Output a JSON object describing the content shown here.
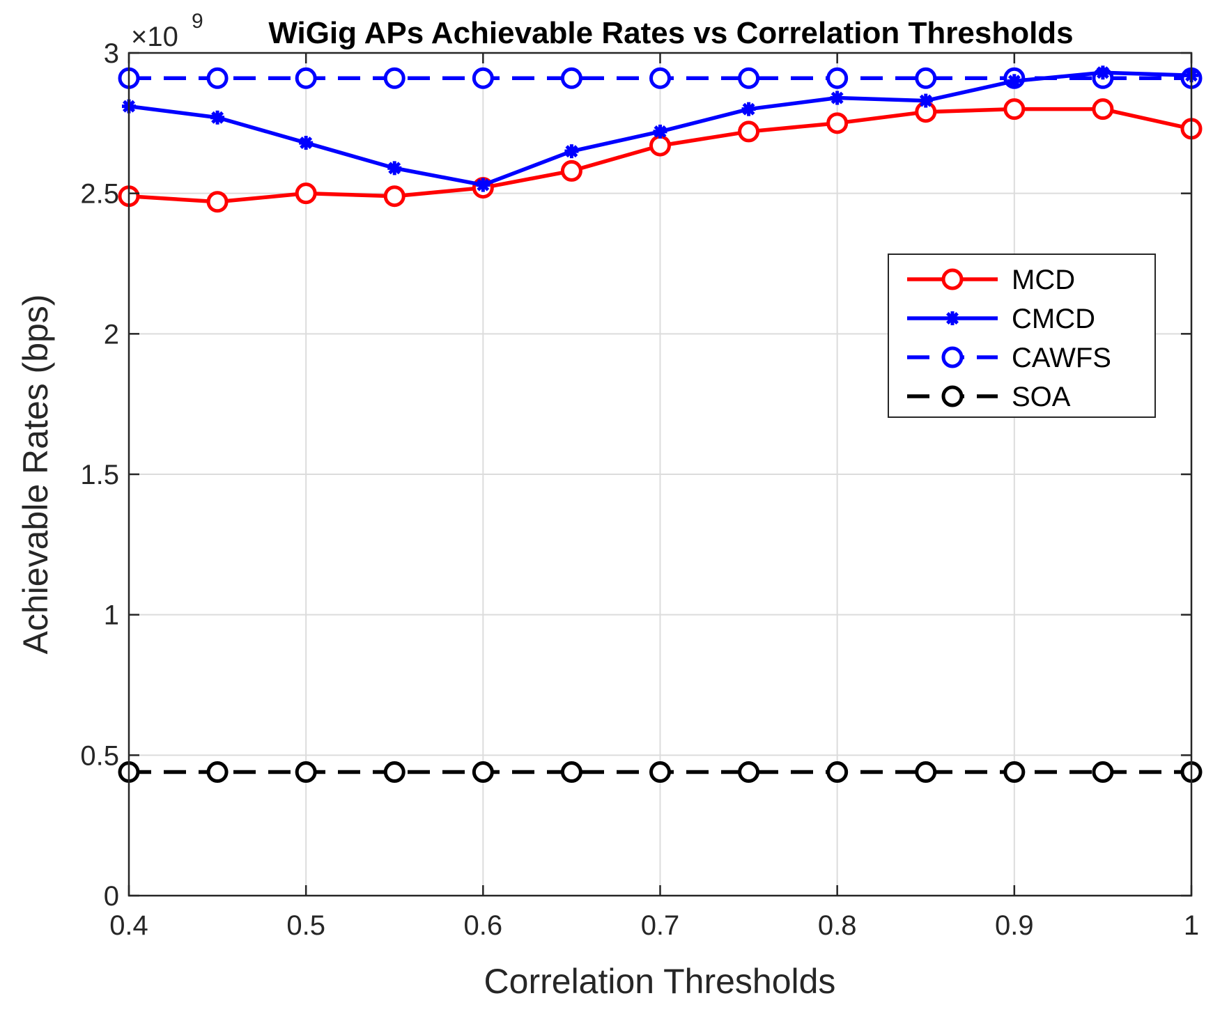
{
  "chart_data": {
    "type": "line",
    "title": "WiGig APs Achievable Rates vs Correlation Thresholds",
    "xlabel": "Correlation Thresholds",
    "ylabel": "Achievable Rates (bps)",
    "y_exponent_label": "×10",
    "y_exponent_power": "9",
    "xlim": [
      0.4,
      1.0
    ],
    "ylim": [
      0,
      3
    ],
    "y_scale": 1000000000,
    "grid": true,
    "legend_position": "right",
    "x": [
      0.4,
      0.45,
      0.5,
      0.55,
      0.6,
      0.65,
      0.7,
      0.75,
      0.8,
      0.85,
      0.9,
      0.95,
      1.0
    ],
    "x_ticks": [
      0.4,
      0.5,
      0.6,
      0.7,
      0.8,
      0.9,
      1.0
    ],
    "x_tick_labels": [
      "0.4",
      "0.5",
      "0.6",
      "0.7",
      "0.8",
      "0.9",
      "1"
    ],
    "y_ticks": [
      0,
      0.5,
      1,
      1.5,
      2,
      2.5,
      3
    ],
    "y_tick_labels": [
      "0",
      "0.5",
      "1",
      "1.5",
      "2",
      "2.5",
      "3"
    ],
    "series": [
      {
        "name": "MCD",
        "color": "#ff0000",
        "line_style": "solid",
        "marker": "circle",
        "values": [
          2.49,
          2.47,
          2.5,
          2.49,
          2.52,
          2.58,
          2.67,
          2.72,
          2.75,
          2.79,
          2.8,
          2.8,
          2.73
        ]
      },
      {
        "name": "CMCD",
        "color": "#0000ff",
        "line_style": "solid",
        "marker": "asterisk",
        "values": [
          2.81,
          2.77,
          2.68,
          2.59,
          2.53,
          2.65,
          2.72,
          2.8,
          2.84,
          2.83,
          2.9,
          2.93,
          2.92
        ]
      },
      {
        "name": "CAWFS",
        "color": "#0000ff",
        "line_style": "dashed",
        "marker": "circle",
        "values": [
          2.91,
          2.91,
          2.91,
          2.91,
          2.91,
          2.91,
          2.91,
          2.91,
          2.91,
          2.91,
          2.91,
          2.91,
          2.91
        ]
      },
      {
        "name": "SOA",
        "color": "#000000",
        "line_style": "dashed",
        "marker": "circle",
        "values": [
          0.44,
          0.44,
          0.44,
          0.44,
          0.44,
          0.44,
          0.44,
          0.44,
          0.44,
          0.44,
          0.44,
          0.44,
          0.44
        ]
      }
    ]
  }
}
